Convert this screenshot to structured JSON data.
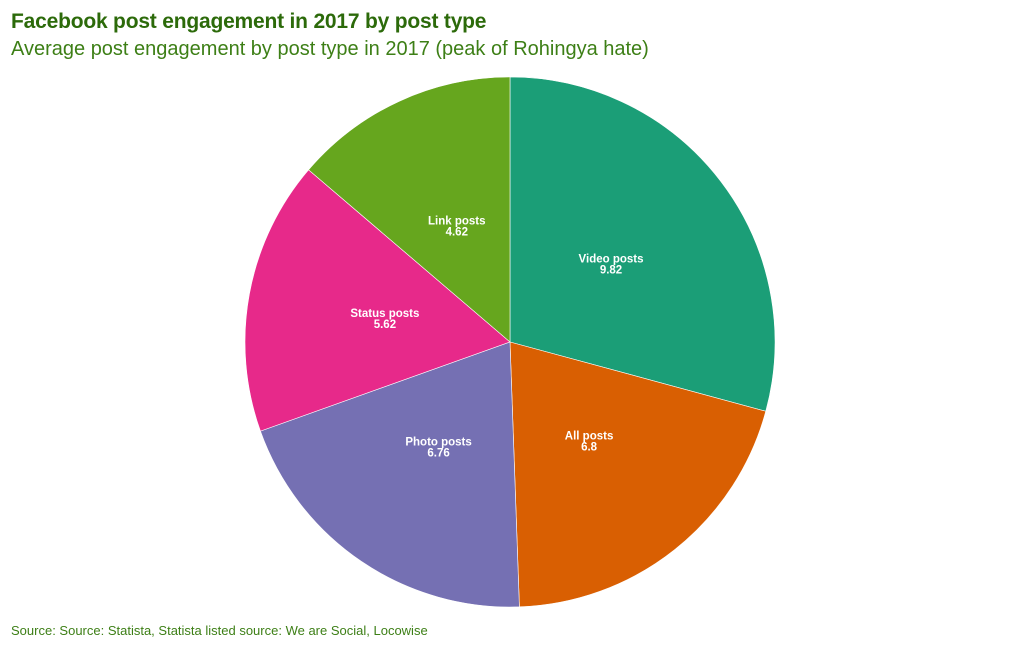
{
  "title": "Facebook post engagement in 2017 by post type",
  "subtitle": "Average post engagement by post type in 2017 (peak of Rohingya hate)",
  "source": "Source: Source: Statista, Statista listed source: We are Social, Locowise",
  "chart_data": {
    "type": "pie",
    "title": "Facebook post engagement in 2017 by post type",
    "subtitle": "Average post engagement by post type in 2017 (peak of Rohingya hate)",
    "start_angle": "12 o'clock",
    "direction": "clockwise",
    "slices": [
      {
        "label": "Video posts",
        "value": 9.82,
        "color": "#1b9e77"
      },
      {
        "label": "All posts",
        "value": 6.8,
        "color": "#d95f02"
      },
      {
        "label": "Photo posts",
        "value": 6.76,
        "color": "#7570b3"
      },
      {
        "label": "Status posts",
        "value": 5.62,
        "color": "#e7298a"
      },
      {
        "label": "Link posts",
        "value": 4.62,
        "color": "#66a61e"
      }
    ]
  }
}
